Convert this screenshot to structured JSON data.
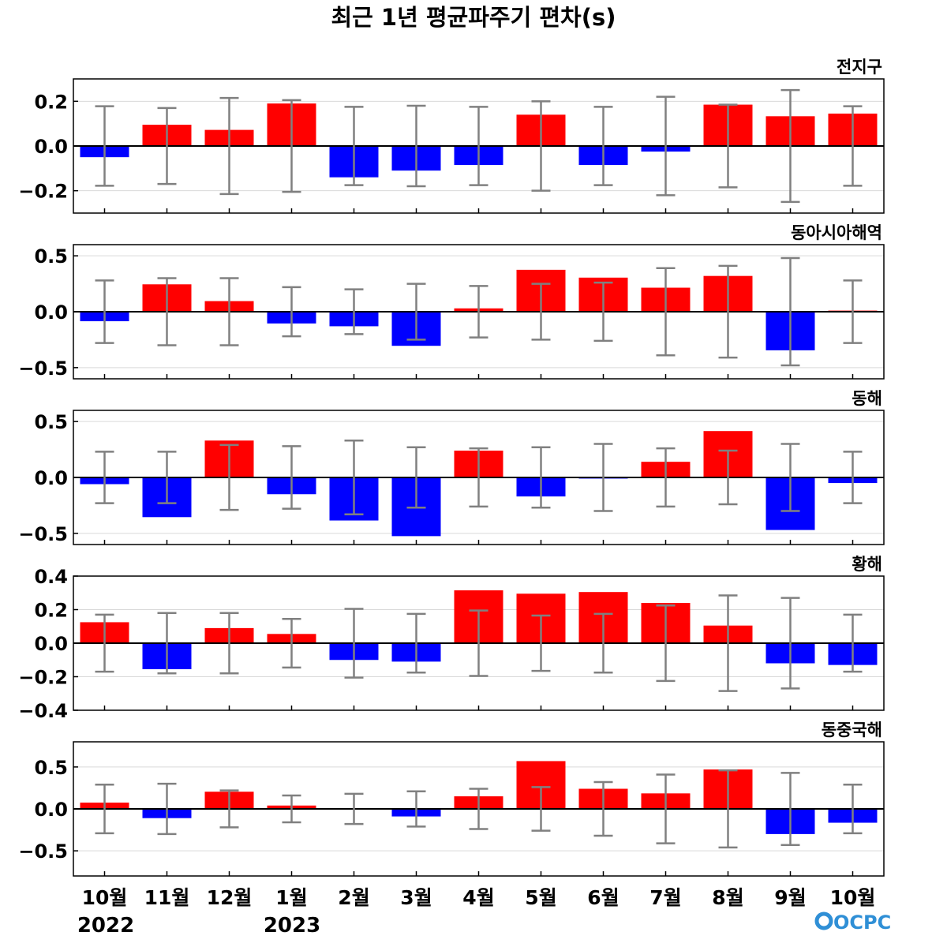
{
  "figure": {
    "title": "최근 1년 평균파주기 편차(s)",
    "logo": "OCPC",
    "year_labels": [
      "2022",
      "2023"
    ]
  },
  "colors": {
    "positive": "#ff0000",
    "negative": "#0000ff",
    "errorbar": "#808080",
    "zero_line": "#000000",
    "grid": "#d9d9d9"
  },
  "chart_data": [
    {
      "type": "bar",
      "title": "전지구",
      "categories": [
        "10월",
        "11월",
        "12월",
        "1월",
        "2월",
        "3월",
        "4월",
        "5월",
        "6월",
        "7월",
        "8월",
        "9월",
        "10월"
      ],
      "values": [
        -0.05,
        0.095,
        0.072,
        0.19,
        -0.14,
        -0.11,
        -0.085,
        0.14,
        -0.085,
        -0.025,
        0.185,
        0.133,
        0.145
      ],
      "error": [
        0.178,
        0.17,
        0.215,
        0.205,
        0.175,
        0.18,
        0.175,
        0.2,
        0.175,
        0.22,
        0.185,
        0.25,
        0.178
      ],
      "ylim": [
        -0.3,
        0.3
      ],
      "yticks": [
        -0.2,
        0.0,
        0.2
      ],
      "ytick_labels": [
        "−0.2",
        "0.0",
        "0.2"
      ],
      "grid": true
    },
    {
      "type": "bar",
      "title": "동아시아해역",
      "categories": [
        "10월",
        "11월",
        "12월",
        "1월",
        "2월",
        "3월",
        "4월",
        "5월",
        "6월",
        "7월",
        "8월",
        "9월",
        "10월"
      ],
      "values": [
        -0.085,
        0.245,
        0.095,
        -0.105,
        -0.13,
        -0.305,
        0.03,
        0.375,
        0.305,
        0.215,
        0.32,
        -0.345,
        0.01
      ],
      "error": [
        0.28,
        0.3,
        0.3,
        0.22,
        0.2,
        0.25,
        0.23,
        0.25,
        0.26,
        0.39,
        0.41,
        0.48,
        0.28
      ],
      "ylim": [
        -0.6,
        0.6
      ],
      "yticks": [
        -0.5,
        0.0,
        0.5
      ],
      "ytick_labels": [
        "−0.5",
        "0.0",
        "0.5"
      ],
      "grid": true
    },
    {
      "type": "bar",
      "title": "동해",
      "categories": [
        "10월",
        "11월",
        "12월",
        "1월",
        "2월",
        "3월",
        "4월",
        "5월",
        "6월",
        "7월",
        "8월",
        "9월",
        "10월"
      ],
      "values": [
        -0.06,
        -0.355,
        0.33,
        -0.15,
        -0.385,
        -0.525,
        0.24,
        -0.17,
        -0.01,
        0.14,
        0.415,
        -0.47,
        -0.05
      ],
      "error": [
        0.23,
        0.23,
        0.29,
        0.28,
        0.33,
        0.27,
        0.26,
        0.27,
        0.3,
        0.26,
        0.24,
        0.3,
        0.23
      ],
      "ylim": [
        -0.6,
        0.6
      ],
      "yticks": [
        -0.5,
        0.0,
        0.5
      ],
      "ytick_labels": [
        "−0.5",
        "0.0",
        "0.5"
      ],
      "grid": true
    },
    {
      "type": "bar",
      "title": "황해",
      "categories": [
        "10월",
        "11월",
        "12월",
        "1월",
        "2월",
        "3월",
        "4월",
        "5월",
        "6월",
        "7월",
        "8월",
        "9월",
        "10월"
      ],
      "values": [
        0.125,
        -0.155,
        0.09,
        0.055,
        -0.1,
        -0.11,
        0.315,
        0.295,
        0.305,
        0.24,
        0.105,
        -0.12,
        -0.13
      ],
      "error": [
        0.17,
        0.18,
        0.18,
        0.145,
        0.205,
        0.175,
        0.195,
        0.165,
        0.175,
        0.225,
        0.285,
        0.27,
        0.17
      ],
      "ylim": [
        -0.4,
        0.4
      ],
      "yticks": [
        -0.4,
        -0.2,
        0.0,
        0.2,
        0.4
      ],
      "ytick_labels": [
        "−0.4",
        "−0.2",
        "0.0",
        "0.2",
        "0.4"
      ],
      "grid": true
    },
    {
      "type": "bar",
      "title": "동중국해",
      "categories": [
        "10월",
        "11월",
        "12월",
        "1월",
        "2월",
        "3월",
        "4월",
        "5월",
        "6월",
        "7월",
        "8월",
        "9월",
        "10월"
      ],
      "values": [
        0.075,
        -0.11,
        0.205,
        0.04,
        0.01,
        -0.09,
        0.15,
        0.57,
        0.24,
        0.185,
        0.47,
        -0.3,
        -0.165
      ],
      "error": [
        0.29,
        0.3,
        0.22,
        0.16,
        0.18,
        0.21,
        0.24,
        0.26,
        0.32,
        0.41,
        0.46,
        0.43,
        0.29
      ],
      "ylim": [
        -0.8,
        0.8
      ],
      "yticks": [
        -0.5,
        0.0,
        0.5
      ],
      "ytick_labels": [
        "−0.5",
        "0.0",
        "0.5"
      ],
      "grid": true
    }
  ]
}
